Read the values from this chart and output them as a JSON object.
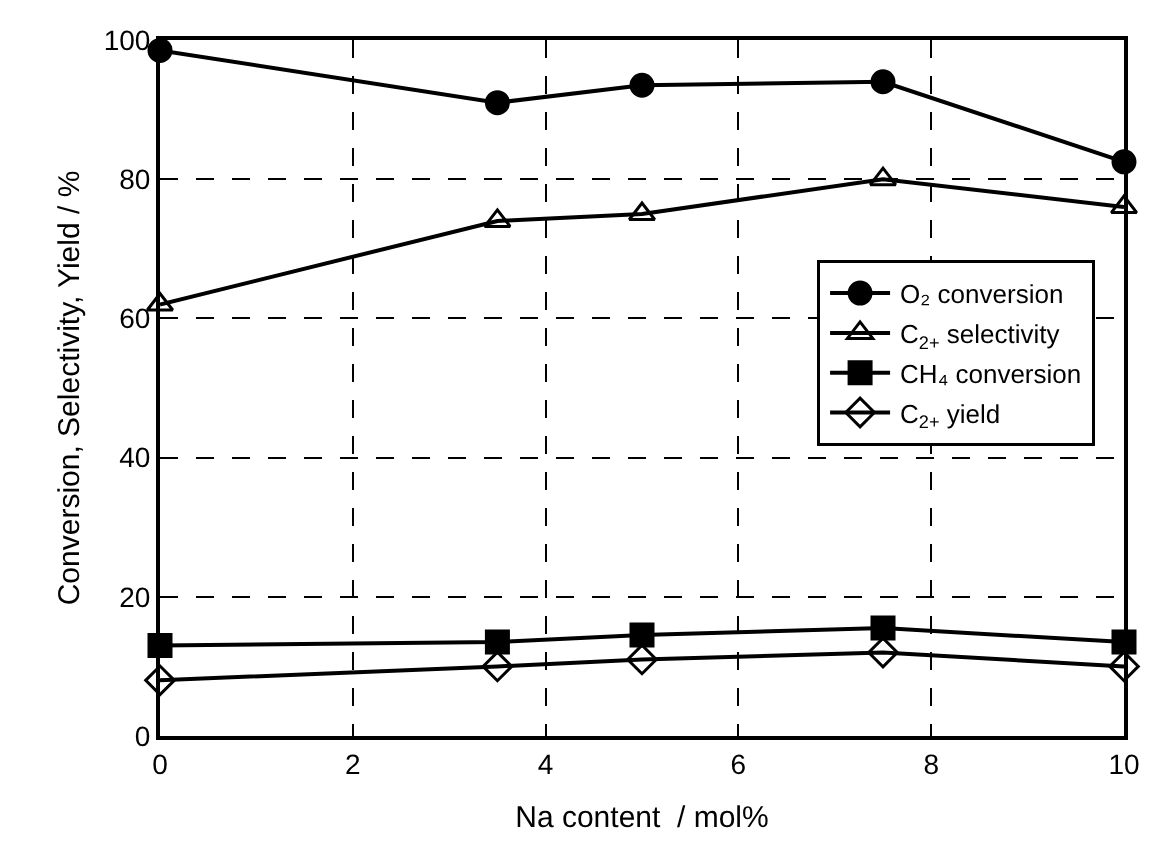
{
  "chart_data": {
    "type": "line",
    "xlabel": "Na content  / mol%",
    "ylabel": "Conversion, Selectivity, Yield / %",
    "x": [
      0,
      3.5,
      5,
      7.5,
      10
    ],
    "series": [
      {
        "name": "O₂ conversion",
        "color": "#000000",
        "marker": "circle",
        "values": [
          98.5,
          91,
          93.5,
          94,
          82.5
        ]
      },
      {
        "name": "C$_{2+}$ selectivity",
        "color": "#000000",
        "marker": "triangle-open",
        "values": [
          62,
          74,
          75,
          80,
          76
        ]
      },
      {
        "name": "CH₄ conversion",
        "color": "#000000",
        "marker": "square",
        "values": [
          13,
          13.5,
          14.5,
          15.5,
          13.5
        ]
      },
      {
        "name": "C$_{2+}$ yield",
        "color": "#000000",
        "marker": "diamond-open",
        "values": [
          8,
          10,
          11,
          12,
          10
        ]
      }
    ],
    "xlim": [
      0,
      10
    ],
    "xticks": [
      0,
      2,
      4,
      6,
      8,
      10
    ],
    "ylim": [
      0,
      100
    ],
    "yticks": [
      0,
      20,
      40,
      60,
      80,
      100
    ],
    "grid": true,
    "legend": "right",
    "line_style": "solid"
  }
}
